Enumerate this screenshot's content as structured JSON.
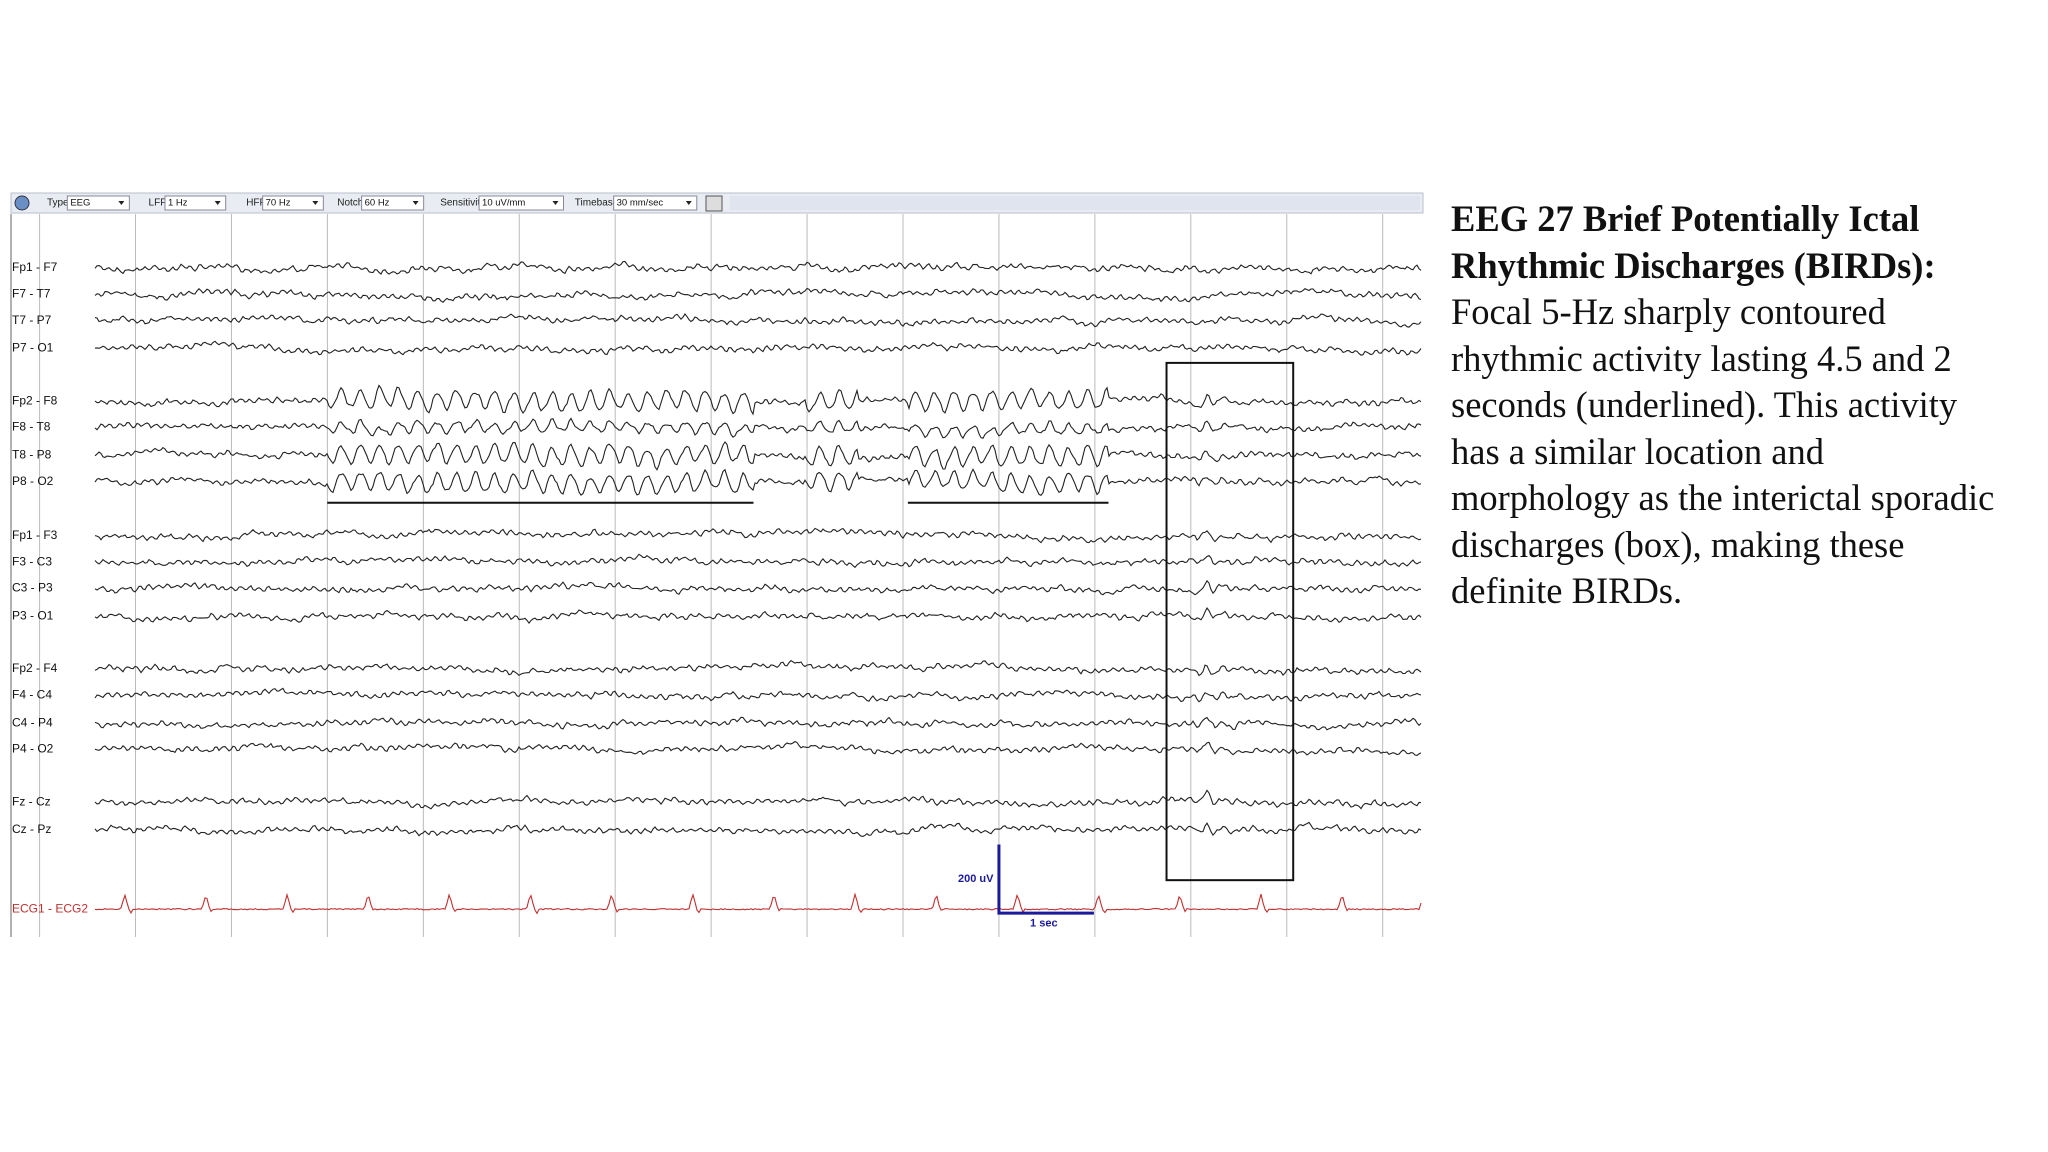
{
  "toolbar": [
    {
      "label": "Type",
      "value": "EEG"
    },
    {
      "label": "LFF",
      "value": "1 Hz"
    },
    {
      "label": "HFF",
      "value": "70 Hz"
    },
    {
      "label": "Notch",
      "value": "60 Hz"
    },
    {
      "label": "Sensitivity",
      "value": "10 uV/mm"
    },
    {
      "label": "Timebase",
      "value": "30 mm/sec"
    }
  ],
  "channels": [
    "Fp1 - F7",
    "F7 - T7",
    "T7 - P7",
    "P7 - O1",
    "Fp2 - F8",
    "F8 - T8",
    "T8 - P8",
    "P8 - O2",
    "Fp1 - F3",
    "F3 - C3",
    "C3 - P3",
    "P3 - O1",
    "Fp2 - F4",
    "F4 - C4",
    "C4 - P4",
    "P4 - O2",
    "Fz - Cz",
    "Cz - Pz",
    "ECG1 - ECG2"
  ],
  "scale": {
    "amplitude": "200 uV",
    "time": "1 sec"
  },
  "caption": {
    "title_lines": [
      "EEG 27 Brief Potentially Ictal",
      "Rhythmic Discharges (BIRDs):"
    ],
    "body_lines": [
      "Focal 5-Hz sharply contoured",
      "rhythmic activity lasting 4.5 and 2",
      "seconds (underlined). This activity",
      "has a similar location and",
      "morphology as the interictal sporadic",
      "discharges (box), making these",
      "definite BIRDs."
    ]
  }
}
